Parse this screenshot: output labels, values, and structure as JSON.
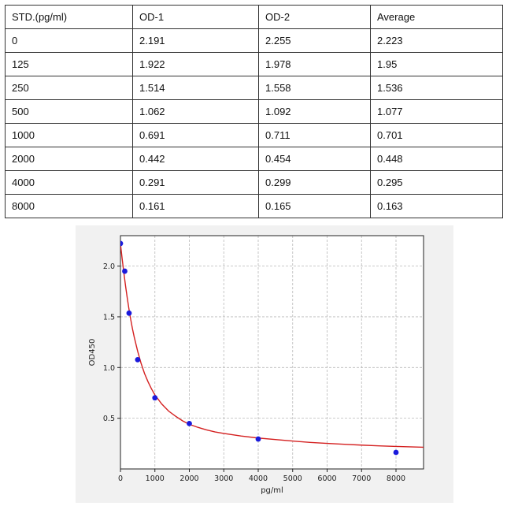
{
  "table": {
    "headers": [
      "STD.(pg/ml)",
      "OD-1",
      "OD-2",
      "Average"
    ],
    "rows": [
      [
        "0",
        "2.191",
        "2.255",
        "2.223"
      ],
      [
        "125",
        "1.922",
        "1.978",
        "1.95"
      ],
      [
        "250",
        "1.514",
        "1.558",
        "1.536"
      ],
      [
        "500",
        "1.062",
        "1.092",
        "1.077"
      ],
      [
        "1000",
        "0.691",
        "0.711",
        "0.701"
      ],
      [
        "2000",
        "0.442",
        "0.454",
        "0.448"
      ],
      [
        "4000",
        "0.291",
        "0.299",
        "0.295"
      ],
      [
        "8000",
        "0.161",
        "0.165",
        "0.163"
      ]
    ]
  },
  "chart_data": {
    "type": "scatter",
    "title": "",
    "xlabel": "pg/ml",
    "ylabel": "OD450",
    "xlim": [
      0,
      8800
    ],
    "ylim": [
      0,
      2.3
    ],
    "xticks": [
      0,
      1000,
      2000,
      3000,
      4000,
      5000,
      6000,
      7000,
      8000
    ],
    "yticks": [
      0.5,
      1.0,
      1.5,
      2.0
    ],
    "ytick_labels": [
      "0.5",
      "1.0",
      "1.5",
      "2.0"
    ],
    "grid": true,
    "points": {
      "x": [
        0,
        125,
        250,
        500,
        1000,
        2000,
        4000,
        8000
      ],
      "y": [
        2.223,
        1.95,
        1.536,
        1.077,
        0.701,
        0.448,
        0.295,
        0.163
      ],
      "color": "#1a1adc"
    },
    "fit_curve": {
      "color": "#d42020",
      "x": [
        0,
        50,
        100,
        150,
        200,
        250,
        300,
        350,
        400,
        500,
        600,
        700,
        800,
        900,
        1000,
        1200,
        1400,
        1600,
        1800,
        2000,
        2250,
        2500,
        2750,
        3000,
        3500,
        4000,
        4500,
        5000,
        5500,
        6000,
        6500,
        7000,
        7500,
        8000,
        8500,
        8800
      ],
      "y": [
        2.22,
        2.07,
        1.93,
        1.8,
        1.68,
        1.57,
        1.47,
        1.38,
        1.3,
        1.16,
        1.04,
        0.94,
        0.86,
        0.79,
        0.73,
        0.64,
        0.57,
        0.52,
        0.475,
        0.44,
        0.41,
        0.385,
        0.365,
        0.35,
        0.325,
        0.305,
        0.29,
        0.275,
        0.262,
        0.252,
        0.243,
        0.235,
        0.228,
        0.222,
        0.217,
        0.214
      ]
    }
  }
}
